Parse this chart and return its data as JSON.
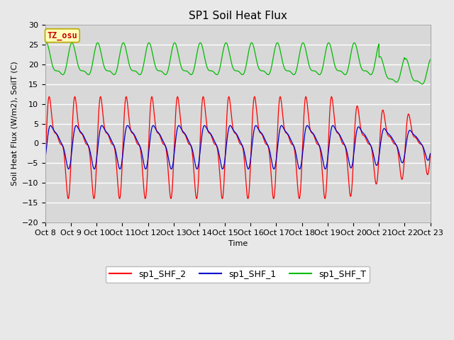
{
  "title": "SP1 Soil Heat Flux",
  "xlabel": "Time",
  "ylabel": "Soil Heat Flux (W/m2), SoilT (C)",
  "ylim": [
    -20,
    30
  ],
  "background_color": "#e8e8e8",
  "plot_bg_color": "#d8d8d8",
  "grid_color": "#ffffff",
  "tz_label": "TZ_osu",
  "legend_entries": [
    "sp1_SHF_2",
    "sp1_SHF_1",
    "sp1_SHF_T"
  ],
  "line_colors": [
    "#ff0000",
    "#0000cc",
    "#00bb00"
  ],
  "xtick_labels": [
    "Oct 8",
    "Oct 9",
    "Oct 10",
    "Oct 11",
    "Oct 12",
    "Oct 13",
    "Oct 14",
    "Oct 15",
    "Oct 16",
    "Oct 17",
    "Oct 18",
    "Oct 19",
    "Oct 20",
    "Oct 21",
    "Oct 22",
    "Oct 23"
  ],
  "title_fontsize": 11,
  "label_fontsize": 8,
  "tick_fontsize": 8
}
